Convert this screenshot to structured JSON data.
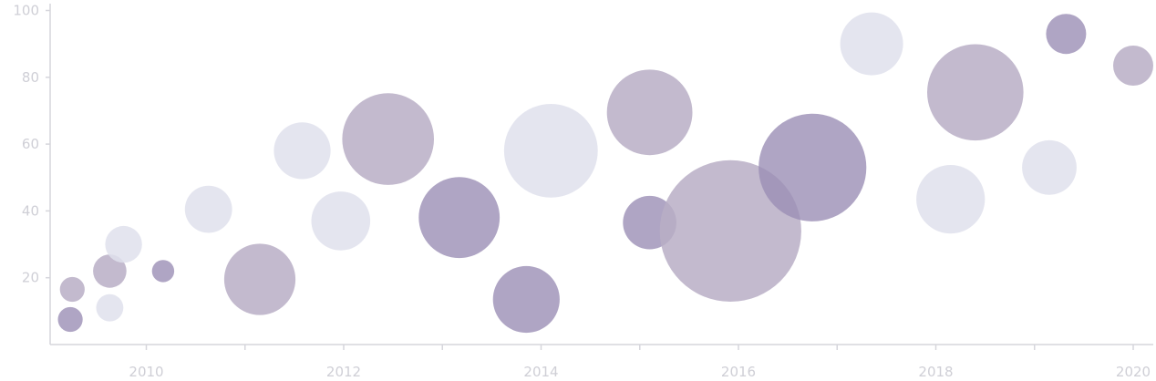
{
  "chart_data": {
    "type": "scatter",
    "title": "",
    "xlabel": "",
    "ylabel": "",
    "xlim": [
      2009.0,
      2020.2
    ],
    "ylim": [
      0,
      100
    ],
    "x_ticks": [
      2010,
      2012,
      2014,
      2016,
      2018,
      2020
    ],
    "x_tick_labels": [
      "2010",
      "2012",
      "2014",
      "2016",
      "2018",
      "2020"
    ],
    "y_ticks": [
      20,
      40,
      60,
      80,
      100
    ],
    "y_tick_labels": [
      "20",
      "40",
      "60",
      "80",
      "100"
    ],
    "grid": false,
    "colors": {
      "light": "#dfe0ec",
      "medium": "#b8aec6",
      "dark": "#9b8fb5",
      "axis": "#d6d6dc",
      "tick_text": "#cfcfd6"
    },
    "points": [
      {
        "x": 2009.25,
        "y": 16.5,
        "size": 5,
        "tone": "medium"
      },
      {
        "x": 2009.23,
        "y": 7.5,
        "size": 5,
        "tone": "dark"
      },
      {
        "x": 2009.63,
        "y": 11,
        "size": 6,
        "tone": "light"
      },
      {
        "x": 2009.63,
        "y": 22,
        "size": 9,
        "tone": "medium"
      },
      {
        "x": 2009.77,
        "y": 30,
        "size": 11,
        "tone": "light"
      },
      {
        "x": 2010.17,
        "y": 22,
        "size": 4,
        "tone": "dark"
      },
      {
        "x": 2010.63,
        "y": 40.5,
        "size": 18,
        "tone": "light"
      },
      {
        "x": 2011.15,
        "y": 19.5,
        "size": 41,
        "tone": "medium"
      },
      {
        "x": 2011.58,
        "y": 58,
        "size": 26,
        "tone": "light"
      },
      {
        "x": 2011.97,
        "y": 37,
        "size": 28,
        "tone": "light"
      },
      {
        "x": 2012.45,
        "y": 61.5,
        "size": 68,
        "tone": "medium"
      },
      {
        "x": 2013.17,
        "y": 38,
        "size": 53,
        "tone": "dark"
      },
      {
        "x": 2013.85,
        "y": 13.5,
        "size": 36,
        "tone": "dark"
      },
      {
        "x": 2014.1,
        "y": 58,
        "size": 71,
        "tone": "light"
      },
      {
        "x": 2015.1,
        "y": 36.5,
        "size": 23,
        "tone": "dark"
      },
      {
        "x": 2015.1,
        "y": 69.5,
        "size": 59,
        "tone": "medium"
      },
      {
        "x": 2015.92,
        "y": 34,
        "size": 162,
        "tone": "medium"
      },
      {
        "x": 2016.75,
        "y": 53,
        "size": 94,
        "tone": "dark"
      },
      {
        "x": 2017.35,
        "y": 90,
        "size": 32,
        "tone": "light"
      },
      {
        "x": 2018.15,
        "y": 43.5,
        "size": 38,
        "tone": "light"
      },
      {
        "x": 2018.4,
        "y": 75.5,
        "size": 75,
        "tone": "medium"
      },
      {
        "x": 2019.15,
        "y": 53,
        "size": 24,
        "tone": "light"
      },
      {
        "x": 2019.32,
        "y": 93,
        "size": 13,
        "tone": "dark"
      },
      {
        "x": 2020.0,
        "y": 83.5,
        "size": 13,
        "tone": "medium"
      }
    ]
  }
}
